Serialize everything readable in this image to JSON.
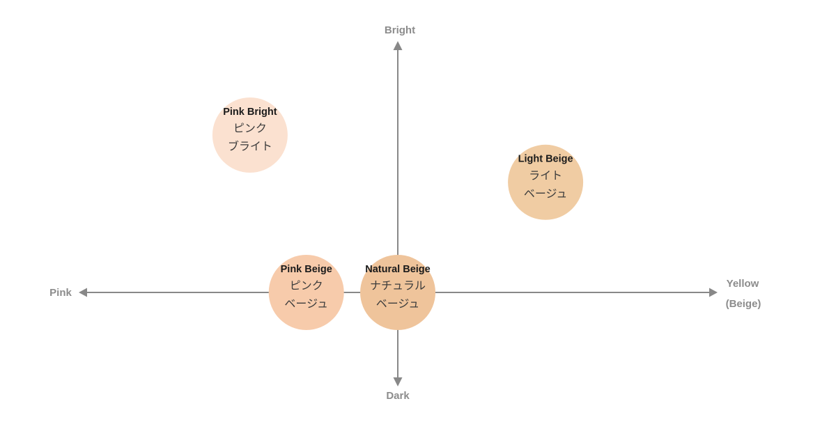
{
  "axes": {
    "top": "Bright",
    "bottom": "Dark",
    "left": "Pink",
    "right_line1": "Yellow",
    "right_line2": "(Beige)"
  },
  "shades": [
    {
      "id": "pink-bright",
      "name": "Pink Bright",
      "jp_line1": "ピンク",
      "jp_line2": "ブライト",
      "color": "#fbe1d0",
      "x": -1.05,
      "y": 1.0
    },
    {
      "id": "light-beige",
      "name": "Light Beige",
      "jp_line1": "ライト",
      "jp_line2": "ベージュ",
      "color": "#f0cca3",
      "x": 1.05,
      "y": 0.7
    },
    {
      "id": "pink-beige",
      "name": "Pink Beige",
      "jp_line1": "ピンク",
      "jp_line2": "ベージュ",
      "color": "#f7cbab",
      "x": -0.65,
      "y": 0.0
    },
    {
      "id": "natural-beige",
      "name": "Natural Beige",
      "jp_line1": "ナチュラル",
      "jp_line2": "ベージュ",
      "color": "#efc49b",
      "x": 0.0,
      "y": 0.0
    }
  ],
  "colors": {
    "axis": "#888888",
    "axis_label": "#8c8c8c"
  }
}
